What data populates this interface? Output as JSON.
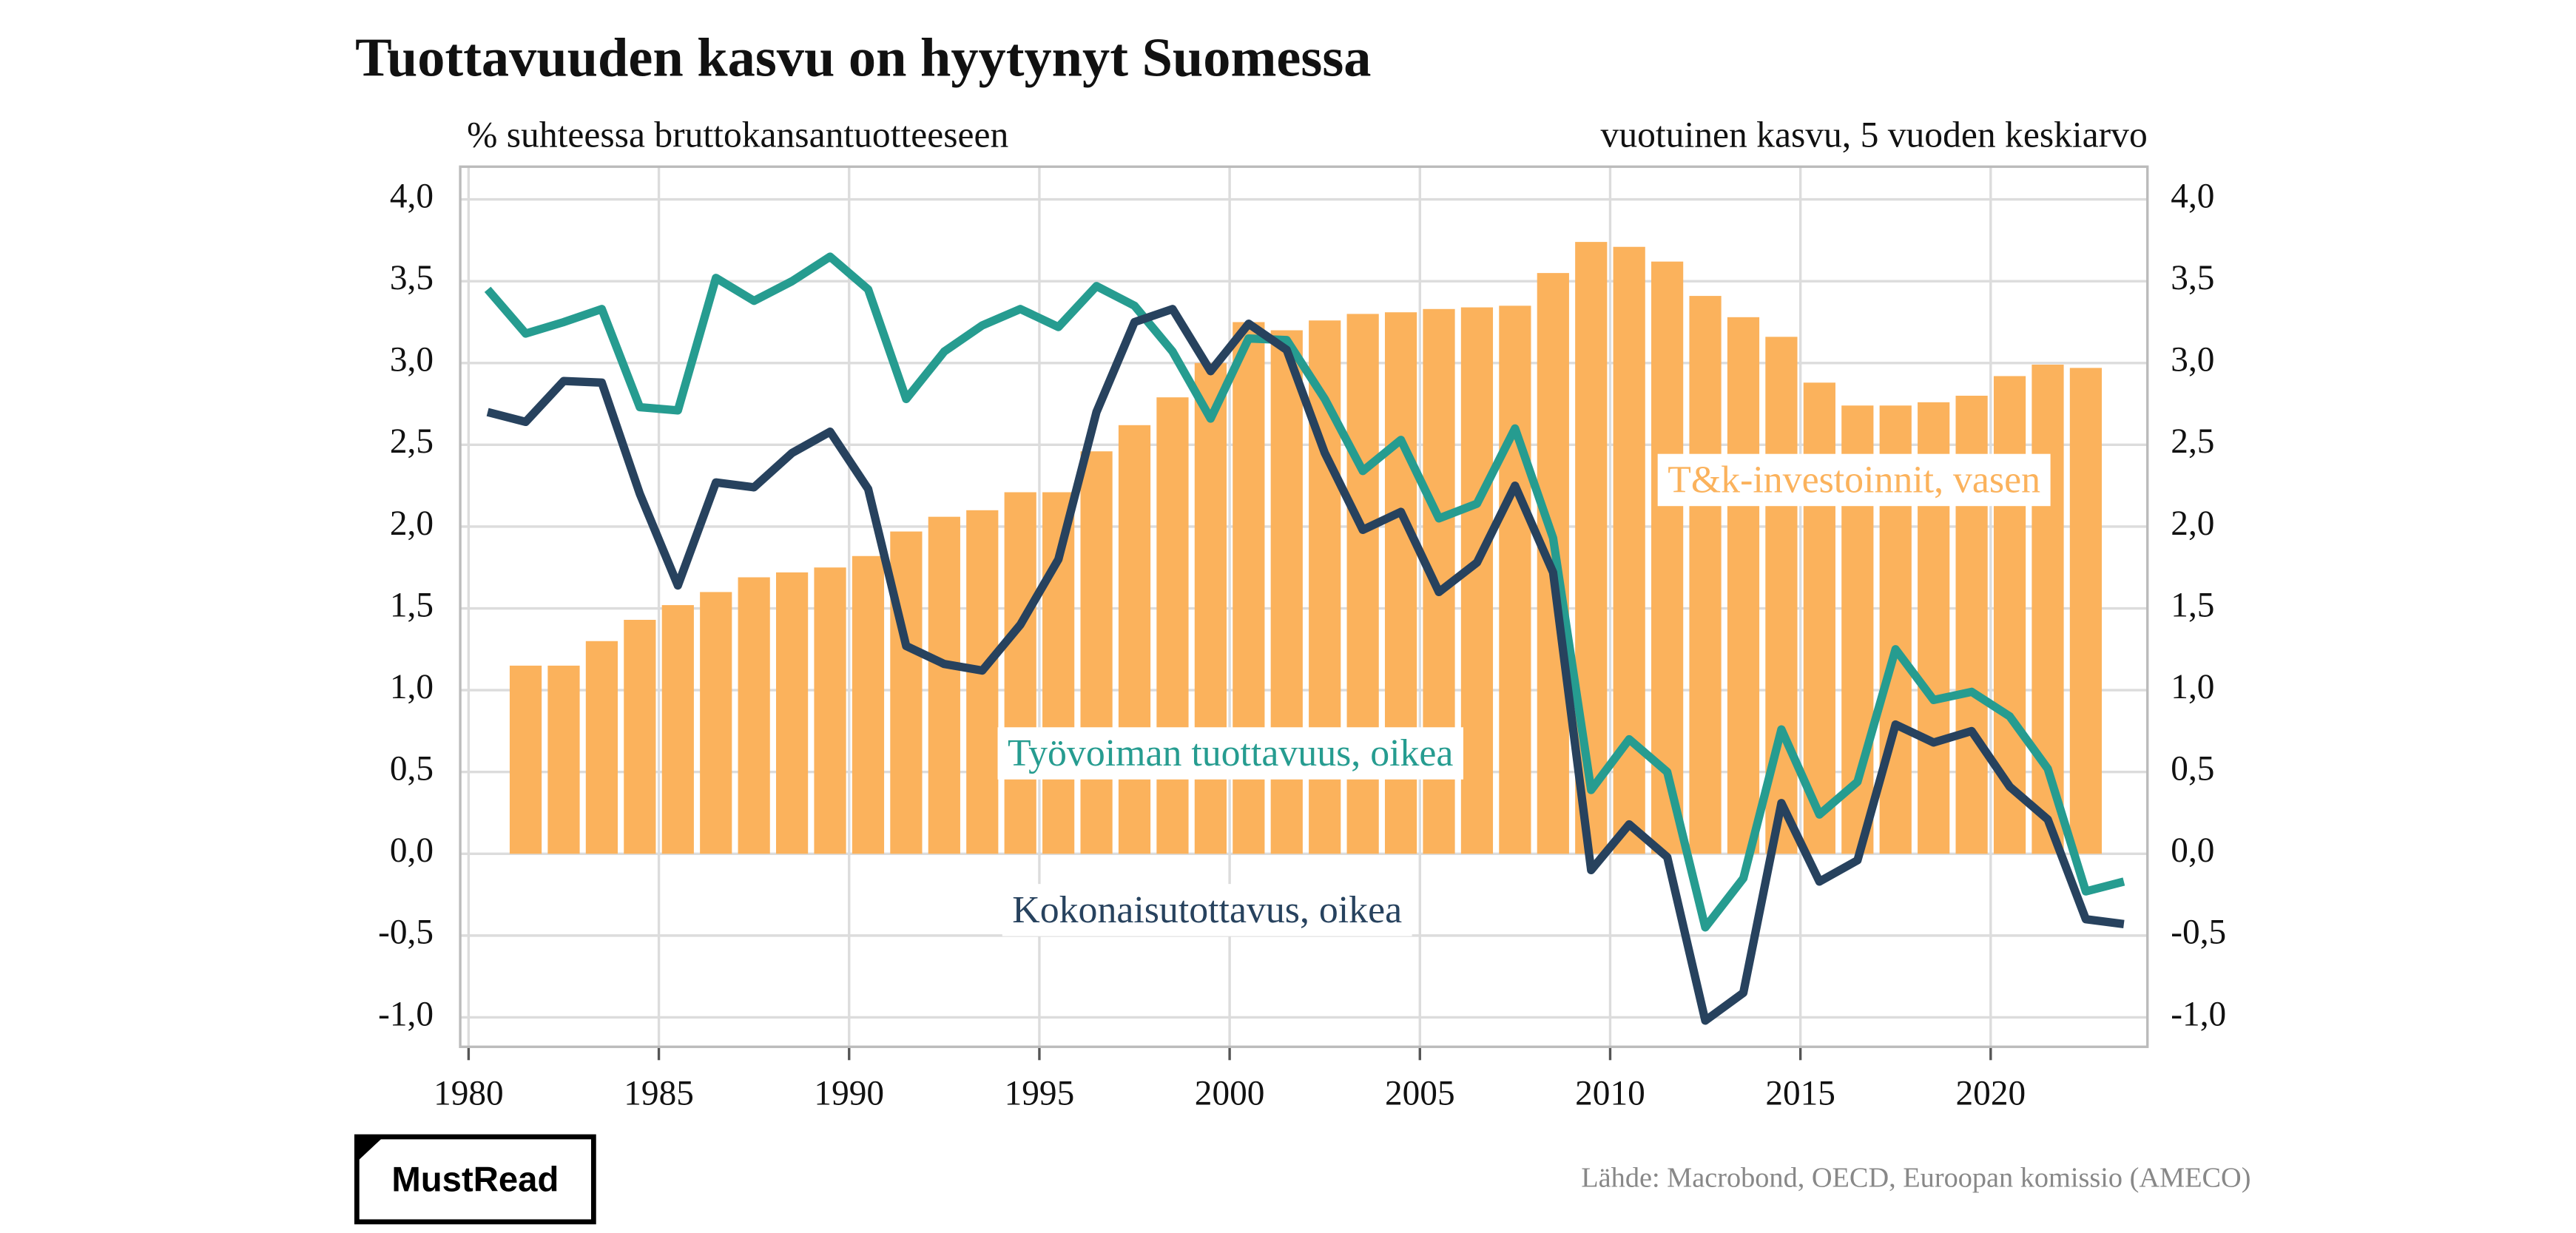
{
  "chart_data": {
    "type": "combo",
    "title": "Tuottavuuden kasvu on hyytynyt Suomessa",
    "ylabel": "% suhteessa bruttokansantuotteeseen",
    "y2label": "vuotuinen kasvu, 5 vuoden keskiarvo",
    "source": "Lähde: Macrobond, OECD, Euroopan komissio (AMECO)",
    "logo": "MustRead",
    "xlim": [
      1979.78,
      2024.12
    ],
    "xticks": [
      1980,
      1985,
      1990,
      1995,
      2000,
      2005,
      2010,
      2015,
      2020
    ],
    "ylim": [
      -1.18,
      4.2
    ],
    "yticks": [
      {
        "value": -1.0,
        "label": "-1,0"
      },
      {
        "value": -0.5,
        "label": "-0,5"
      },
      {
        "value": 0.0,
        "label": "0,0"
      },
      {
        "value": 0.5,
        "label": "0,5"
      },
      {
        "value": 1.0,
        "label": "1,0"
      },
      {
        "value": 1.5,
        "label": "1,5"
      },
      {
        "value": 2.0,
        "label": "2,0"
      },
      {
        "value": 2.5,
        "label": "2,5"
      },
      {
        "value": 3.0,
        "label": "3,0"
      },
      {
        "value": 3.5,
        "label": "3,5"
      },
      {
        "value": 4.0,
        "label": "4,0"
      }
    ],
    "y2lim": [
      -1.18,
      4.2
    ],
    "y2ticks": [
      {
        "value": -1.0,
        "label": "-1,0"
      },
      {
        "value": -0.5,
        "label": "-0,5"
      },
      {
        "value": 0.0,
        "label": "0,0"
      },
      {
        "value": 0.5,
        "label": "0,5"
      },
      {
        "value": 1.0,
        "label": "1,0"
      },
      {
        "value": 1.5,
        "label": "1,5"
      },
      {
        "value": 2.0,
        "label": "2,0"
      },
      {
        "value": 2.5,
        "label": "2,5"
      },
      {
        "value": 3.0,
        "label": "3,0"
      },
      {
        "value": 3.5,
        "label": "3,5"
      },
      {
        "value": 4.0,
        "label": "4,0"
      }
    ],
    "grid": true,
    "series": [
      {
        "name": "T&k-investoinnit, vasen",
        "type": "bar",
        "color": "#fbb25c",
        "x": [
          1981,
          1982,
          1983,
          1984,
          1985,
          1986,
          1987,
          1988,
          1989,
          1990,
          1991,
          1992,
          1993,
          1994,
          1995,
          1996,
          1997,
          1998,
          1999,
          2000,
          2001,
          2002,
          2003,
          2004,
          2005,
          2006,
          2007,
          2008,
          2009,
          2010,
          2011,
          2012,
          2013,
          2014,
          2015,
          2016,
          2017,
          2018,
          2019,
          2020,
          2021,
          2022
        ],
        "values": [
          1.15,
          1.15,
          1.3,
          1.43,
          1.52,
          1.6,
          1.69,
          1.72,
          1.75,
          1.82,
          1.97,
          2.06,
          2.1,
          2.21,
          2.21,
          2.46,
          2.62,
          2.79,
          3.0,
          3.25,
          3.2,
          3.26,
          3.3,
          3.31,
          3.33,
          3.34,
          3.35,
          3.55,
          3.74,
          3.71,
          3.62,
          3.41,
          3.28,
          3.16,
          2.88,
          2.74,
          2.74,
          2.76,
          2.8,
          2.92,
          2.99,
          2.97
        ]
      },
      {
        "name": "Työvoiman tuottavuus, oikea",
        "type": "line",
        "axis": "y2",
        "color": "#269c90",
        "x": [
          1980,
          1981,
          1982,
          1983,
          1984,
          1985,
          1986,
          1987,
          1988,
          1989,
          1990,
          1991,
          1992,
          1993,
          1994,
          1995,
          1996,
          1997,
          1998,
          1999,
          2000,
          2001,
          2002,
          2003,
          2004,
          2005,
          2006,
          2007,
          2008,
          2009,
          2010,
          2011,
          2012,
          2013,
          2014,
          2015,
          2016,
          2017,
          2018,
          2019,
          2020,
          2021,
          2022,
          2023
        ],
        "values": [
          3.45,
          3.18,
          3.25,
          3.33,
          2.73,
          2.71,
          3.52,
          3.38,
          3.5,
          3.65,
          3.45,
          2.78,
          3.07,
          3.23,
          3.33,
          3.22,
          3.47,
          3.35,
          3.07,
          2.66,
          3.15,
          3.14,
          2.78,
          2.34,
          2.53,
          2.05,
          2.14,
          2.6,
          1.93,
          0.39,
          0.7,
          0.5,
          -0.45,
          -0.15,
          0.76,
          0.24,
          0.44,
          1.25,
          0.94,
          0.99,
          0.84,
          0.52,
          -0.23,
          -0.17
        ]
      },
      {
        "name": "Kokonaisutottavus, oikea",
        "type": "line",
        "axis": "y2",
        "color": "#27425e",
        "x": [
          1980,
          1981,
          1982,
          1983,
          1984,
          1985,
          1986,
          1987,
          1988,
          1989,
          1990,
          1991,
          1992,
          1993,
          1994,
          1995,
          1996,
          1997,
          1998,
          1999,
          2000,
          2001,
          2002,
          2003,
          2004,
          2005,
          2006,
          2007,
          2008,
          2009,
          2010,
          2011,
          2012,
          2013,
          2014,
          2015,
          2016,
          2017,
          2018,
          2019,
          2020,
          2021,
          2022,
          2023
        ],
        "values": [
          2.7,
          2.64,
          2.89,
          2.88,
          2.2,
          1.64,
          2.27,
          2.24,
          2.45,
          2.58,
          2.23,
          1.27,
          1.16,
          1.12,
          1.4,
          1.8,
          2.7,
          3.25,
          3.33,
          2.95,
          3.24,
          3.08,
          2.45,
          1.98,
          2.09,
          1.6,
          1.78,
          2.25,
          1.72,
          -0.1,
          0.18,
          -0.02,
          -1.02,
          -0.85,
          0.31,
          -0.17,
          -0.04,
          0.79,
          0.68,
          0.75,
          0.41,
          0.21,
          -0.4,
          -0.43
        ]
      }
    ]
  }
}
